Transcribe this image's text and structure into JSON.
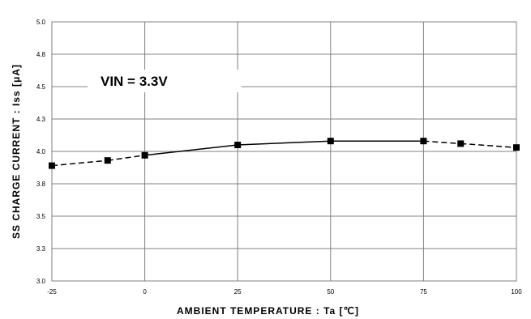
{
  "chart_data": {
    "type": "line",
    "title": "",
    "xlabel": "AMBIENT TEMPERATURE : Ta [℃]",
    "ylabel": "SS CHARGE CURRENT : Iss [μA]",
    "xlim": [
      -25,
      100
    ],
    "ylim": [
      3.0,
      5.0
    ],
    "x_ticks": [
      -25,
      0,
      25,
      50,
      75,
      100
    ],
    "x_tick_labels": [
      "-25",
      "0",
      "25",
      "50",
      "75",
      "100"
    ],
    "y_ticks": [
      3.0,
      3.25,
      3.5,
      3.75,
      4.0,
      4.25,
      4.5,
      4.75,
      5.0
    ],
    "y_tick_labels": [
      "3.0",
      "3.3",
      "3.5",
      "3.8",
      "4.0",
      "4.3",
      "4.5",
      "4.8",
      "5.0"
    ],
    "grid": true,
    "legend": "none",
    "annotation": "VIN = 3.3V",
    "series": [
      {
        "x": [
          -25,
          -10,
          0,
          25,
          50,
          75,
          85,
          100
        ],
        "values": [
          3.89,
          3.93,
          3.97,
          4.05,
          4.08,
          4.08,
          4.06,
          4.03
        ],
        "solid_range": [
          0,
          80
        ],
        "color": "#000000"
      }
    ]
  }
}
